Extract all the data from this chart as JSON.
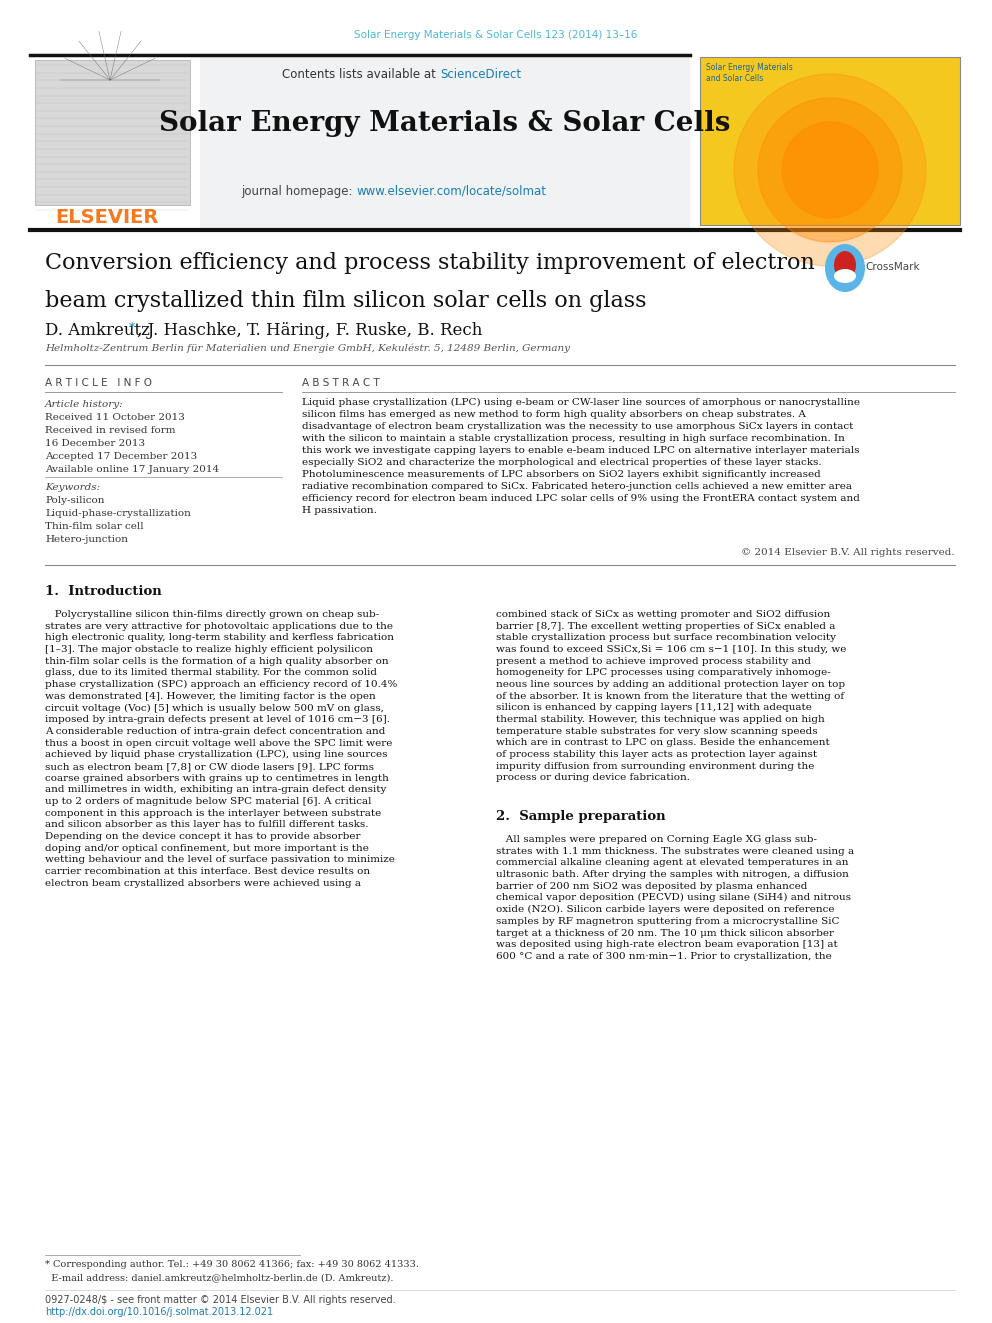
{
  "fig_width": 9.92,
  "fig_height": 13.23,
  "bg_color": "#ffffff",
  "header_journal_ref": "Solar Energy Materials & Solar Cells 123 (2014) 13–16",
  "header_color": "#4db8d4",
  "journal_title": "Solar Energy Materials & Solar Cells",
  "contents_text": "Contents lists available at ",
  "sciencedirect_text": "ScienceDirect",
  "journal_homepage_text": "journal homepage: ",
  "homepage_url": "www.elsevier.com/locate/solmat",
  "article_title_line1": "Conversion efficiency and process stability improvement of electron",
  "article_title_line2": "beam crystallized thin film silicon solar cells on glass",
  "authors_main": "D. Amkreutz",
  "authors_rest": ", J. Haschke, T. Häring, F. Ruske, B. Rech",
  "affiliation": "Helmholtz-Zentrum Berlin für Materialien und Energie GmbH, Kekuléstr. 5, 12489 Berlin, Germany",
  "article_history_label": "Article history:",
  "received1": "Received 11 October 2013",
  "received_revised": "Received in revised form",
  "revised_date": "16 December 2013",
  "accepted": "Accepted 17 December 2013",
  "available": "Available online 17 January 2014",
  "keywords_label": "Keywords:",
  "keyword1": "Poly-silicon",
  "keyword2": "Liquid-phase-crystallization",
  "keyword3": "Thin-film solar cell",
  "keyword4": "Hetero-junction",
  "abstract_text": "Liquid phase crystallization (LPC) using e-beam or CW-laser line sources of amorphous or nanocrystalline\nsilicon films has emerged as new method to form high quality absorbers on cheap substrates. A\ndisadvantage of electron beam crystallization was the necessity to use amorphous SiCx layers in contact\nwith the silicon to maintain a stable crystallization process, resulting in high surface recombination. In\nthis work we investigate capping layers to enable e-beam induced LPC on alternative interlayer materials\nespecially SiO2 and characterize the morphological and electrical properties of these layer stacks.\nPhotoluminescence measurements of LPC absorbers on SiO2 layers exhibit significantly increased\nradiative recombination compared to SiCx. Fabricated hetero-junction cells achieved a new emitter area\nefficiency record for electron beam induced LPC solar cells of 9% using the FrontERA contact system and\nH passivation.",
  "copyright_text": "© 2014 Elsevier B.V. All rights reserved.",
  "section1_title": "1.  Introduction",
  "intro_col1": "   Polycrystalline silicon thin-films directly grown on cheap sub-\nstrates are very attractive for photovoltaic applications due to the\nhigh electronic quality, long-term stability and kerfless fabrication\n[1–3]. The major obstacle to realize highly efficient polysilicon\nthin-film solar cells is the formation of a high quality absorber on\nglass, due to its limited thermal stability. For the common solid\nphase crystallization (SPC) approach an efficiency record of 10.4%\nwas demonstrated [4]. However, the limiting factor is the open\ncircuit voltage (Voc) [5] which is usually below 500 mV on glass,\nimposed by intra-grain defects present at level of 1016 cm−3 [6].\nA considerable reduction of intra-grain defect concentration and\nthus a boost in open circuit voltage well above the SPC limit were\nachieved by liquid phase crystallization (LPC), using line sources\nsuch as electron beam [7,8] or CW diode lasers [9]. LPC forms\ncoarse grained absorbers with grains up to centimetres in length\nand millimetres in width, exhibiting an intra-grain defect density\nup to 2 orders of magnitude below SPC material [6]. A critical\ncomponent in this approach is the interlayer between substrate\nand silicon absorber as this layer has to fulfill different tasks.\nDepending on the device concept it has to provide absorber\ndoping and/or optical confinement, but more important is the\nwetting behaviour and the level of surface passivation to minimize\ncarrier recombination at this interface. Best device results on\nelectron beam crystallized absorbers were achieved using a",
  "intro_col2": "combined stack of SiCx as wetting promoter and SiO2 diffusion\nbarrier [8,7]. The excellent wetting properties of SiCx enabled a\nstable crystallization process but surface recombination velocity\nwas found to exceed SSiCx,Si = 106 cm s−1 [10]. In this study, we\npresent a method to achieve improved process stability and\nhomogeneity for LPC processes using comparatively inhomoge-\nneous line sources by adding an additional protection layer on top\nof the absorber. It is known from the literature that the wetting of\nsilicon is enhanced by capping layers [11,12] with adequate\nthermal stability. However, this technique was applied on high\ntemperature stable substrates for very slow scanning speeds\nwhich are in contrast to LPC on glass. Beside the enhancement\nof process stability this layer acts as protection layer against\nimpurity diffusion from surrounding environment during the\nprocess or during device fabrication.",
  "section2_title": "2.  Sample preparation",
  "sample_prep_col2": "   All samples were prepared on Corning Eagle XG glass sub-\nstrates with 1.1 mm thickness. The substrates were cleaned using a\ncommercial alkaline cleaning agent at elevated temperatures in an\nultrasonic bath. After drying the samples with nitrogen, a diffusion\nbarrier of 200 nm SiO2 was deposited by plasma enhanced\nchemical vapor deposition (PECVD) using silane (SiH4) and nitrous\noxide (N2O). Silicon carbide layers were deposited on reference\nsamples by RF magnetron sputtering from a microcrystalline SiC\ntarget at a thickness of 20 nm. The 10 μm thick silicon absorber\nwas deposited using high-rate electron beam evaporation [13] at\n600 °C and a rate of 300 nm·min−1. Prior to crystallization, the",
  "footnote_star": "* Corresponding author. Tel.: +49 30 8062 41366; fax: +49 30 8062 41333.",
  "footnote_email": "  E-mail address: daniel.amkreutz@helmholtz-berlin.de (D. Amkreutz).",
  "footer_line1": "0927-0248/$ - see front matter © 2014 Elsevier B.V. All rights reserved.",
  "footer_line2": "http://dx.doi.org/10.1016/j.solmat.2013.12.021",
  "link_color": "#1a7db5",
  "elsevier_orange": "#f47920",
  "header_bg": "#f0f2f4",
  "thick_bar_color": "#111111"
}
